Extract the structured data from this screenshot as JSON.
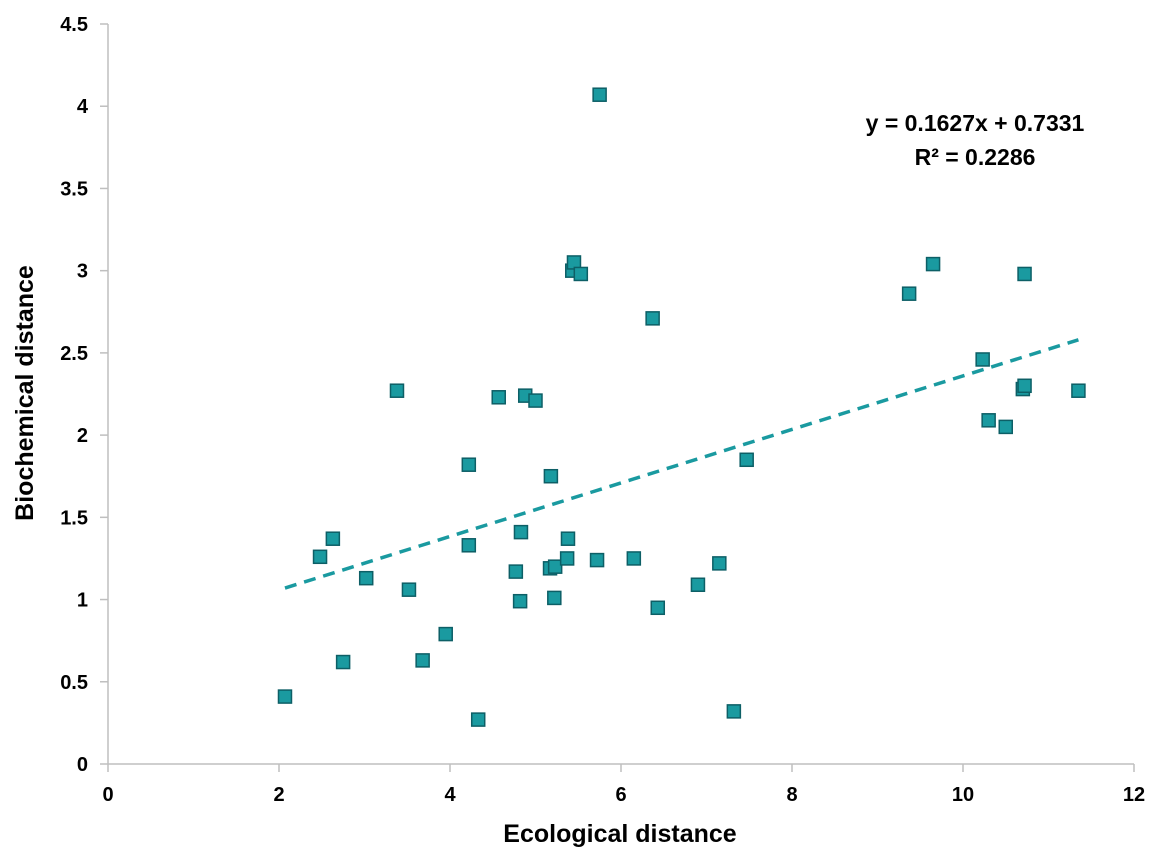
{
  "chart_data": {
    "type": "scatter",
    "xlabel": "Ecological distance",
    "ylabel": "Biochemical distance",
    "xlim": [
      0,
      12
    ],
    "ylim": [
      0,
      4.5
    ],
    "x_ticks": [
      "0",
      "2",
      "4",
      "6",
      "8",
      "10",
      "12"
    ],
    "y_ticks": [
      "0",
      "0.5",
      "1",
      "1.5",
      "2",
      "2.5",
      "3",
      "3.5",
      "4",
      "4.5"
    ],
    "grid": false,
    "legend": "none",
    "marker": "square",
    "colors": {
      "marker_fill": "#1a9aa0",
      "marker_edge": "#0d5f66",
      "trendline": "#1a9aa0",
      "axis": "#bfbfbf"
    },
    "points": [
      {
        "x": 2.07,
        "y": 0.41
      },
      {
        "x": 2.48,
        "y": 1.26
      },
      {
        "x": 2.63,
        "y": 1.37
      },
      {
        "x": 2.75,
        "y": 0.62
      },
      {
        "x": 3.02,
        "y": 1.13
      },
      {
        "x": 3.38,
        "y": 2.27
      },
      {
        "x": 3.52,
        "y": 1.06
      },
      {
        "x": 3.68,
        "y": 0.63
      },
      {
        "x": 3.95,
        "y": 0.79
      },
      {
        "x": 4.22,
        "y": 1.82
      },
      {
        "x": 4.22,
        "y": 1.33
      },
      {
        "x": 4.33,
        "y": 0.27
      },
      {
        "x": 4.57,
        "y": 2.23
      },
      {
        "x": 4.77,
        "y": 1.17
      },
      {
        "x": 4.82,
        "y": 0.99
      },
      {
        "x": 4.83,
        "y": 1.41
      },
      {
        "x": 4.88,
        "y": 2.24
      },
      {
        "x": 5.0,
        "y": 2.21
      },
      {
        "x": 5.17,
        "y": 1.19
      },
      {
        "x": 5.18,
        "y": 1.75
      },
      {
        "x": 5.22,
        "y": 1.01
      },
      {
        "x": 5.23,
        "y": 1.2
      },
      {
        "x": 5.37,
        "y": 1.25
      },
      {
        "x": 5.38,
        "y": 1.37
      },
      {
        "x": 5.43,
        "y": 3.0
      },
      {
        "x": 5.45,
        "y": 3.05
      },
      {
        "x": 5.53,
        "y": 2.98
      },
      {
        "x": 5.72,
        "y": 1.24
      },
      {
        "x": 5.75,
        "y": 4.07
      },
      {
        "x": 6.15,
        "y": 1.25
      },
      {
        "x": 6.37,
        "y": 2.71
      },
      {
        "x": 6.43,
        "y": 0.95
      },
      {
        "x": 6.9,
        "y": 1.09
      },
      {
        "x": 7.15,
        "y": 1.22
      },
      {
        "x": 7.32,
        "y": 0.32
      },
      {
        "x": 7.47,
        "y": 1.85
      },
      {
        "x": 9.37,
        "y": 2.86
      },
      {
        "x": 9.65,
        "y": 3.04
      },
      {
        "x": 10.23,
        "y": 2.46
      },
      {
        "x": 10.3,
        "y": 2.09
      },
      {
        "x": 10.5,
        "y": 2.05
      },
      {
        "x": 10.7,
        "y": 2.28
      },
      {
        "x": 10.72,
        "y": 2.3
      },
      {
        "x": 10.72,
        "y": 2.98
      },
      {
        "x": 11.35,
        "y": 2.27
      }
    ],
    "trendline": {
      "slope": 0.1627,
      "intercept": 0.7331,
      "x_start": 2.07,
      "x_end": 11.35,
      "style": "dashed"
    },
    "annotations": [
      "y = 0.1627x + 0.7331",
      "R² = 0.2286"
    ]
  }
}
